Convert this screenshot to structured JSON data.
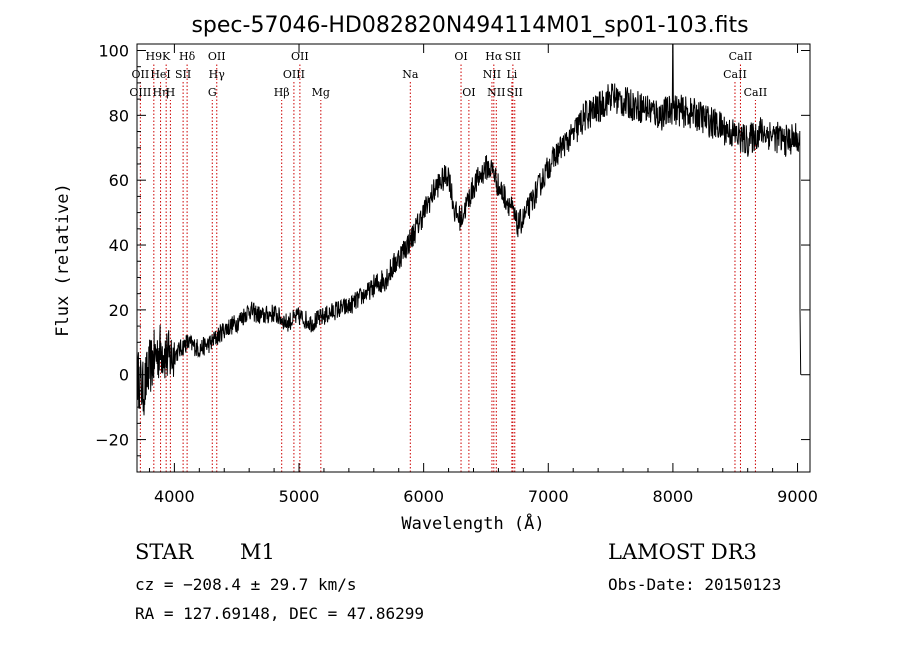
{
  "chart_data": {
    "type": "line",
    "title": "spec-57046-HD082820N494114M01_sp01-103.fits",
    "xlabel": "Wavelength (Å)",
    "ylabel": "Flux (relative)",
    "xlim": [
      3700,
      9100
    ],
    "ylim": [
      -30,
      102
    ],
    "xticks": [
      4000,
      5000,
      6000,
      7000,
      8000,
      9000
    ],
    "yticks": [
      -20,
      0,
      20,
      40,
      60,
      80,
      100
    ],
    "anchors": [
      [
        3700,
        0
      ],
      [
        3750,
        -5
      ],
      [
        3800,
        2
      ],
      [
        3850,
        6
      ],
      [
        3900,
        8
      ],
      [
        3950,
        5
      ],
      [
        4000,
        6
      ],
      [
        4100,
        10
      ],
      [
        4200,
        8
      ],
      [
        4300,
        10
      ],
      [
        4400,
        14
      ],
      [
        4500,
        16
      ],
      [
        4600,
        20
      ],
      [
        4700,
        18
      ],
      [
        4800,
        19
      ],
      [
        4900,
        16
      ],
      [
        5000,
        18
      ],
      [
        5100,
        16
      ],
      [
        5200,
        18
      ],
      [
        5300,
        20
      ],
      [
        5400,
        21
      ],
      [
        5500,
        24
      ],
      [
        5600,
        27
      ],
      [
        5700,
        30
      ],
      [
        5800,
        36
      ],
      [
        5900,
        42
      ],
      [
        6000,
        50
      ],
      [
        6100,
        58
      ],
      [
        6200,
        62
      ],
      [
        6250,
        50
      ],
      [
        6300,
        48
      ],
      [
        6400,
        58
      ],
      [
        6500,
        64
      ],
      [
        6560,
        63
      ],
      [
        6600,
        58
      ],
      [
        6700,
        52
      ],
      [
        6750,
        46
      ],
      [
        6800,
        48
      ],
      [
        6900,
        56
      ],
      [
        7000,
        64
      ],
      [
        7100,
        70
      ],
      [
        7200,
        74
      ],
      [
        7300,
        80
      ],
      [
        7400,
        82
      ],
      [
        7500,
        86
      ],
      [
        7600,
        84
      ],
      [
        7700,
        83
      ],
      [
        7800,
        82
      ],
      [
        7900,
        80
      ],
      [
        8000,
        82
      ],
      [
        8100,
        81
      ],
      [
        8200,
        80
      ],
      [
        8300,
        78
      ],
      [
        8400,
        76
      ],
      [
        8500,
        74
      ],
      [
        8600,
        72
      ],
      [
        8700,
        75
      ],
      [
        8800,
        74
      ],
      [
        8900,
        72
      ],
      [
        9000,
        73
      ],
      [
        9020,
        70
      ]
    ],
    "lines": [
      {
        "label": "H9",
        "x": 3835,
        "row": 1
      },
      {
        "label": "K",
        "x": 3934,
        "row": 1
      },
      {
        "label": "Hδ",
        "x": 4102,
        "row": 1
      },
      {
        "label": "OII",
        "x": 4340,
        "row": 1
      },
      {
        "label": "OII",
        "x": 5007,
        "row": 1
      },
      {
        "label": "OI",
        "x": 6300,
        "row": 1
      },
      {
        "label": "Hα",
        "x": 6563,
        "row": 1
      },
      {
        "label": "SII",
        "x": 6716,
        "row": 1
      },
      {
        "label": "CaII",
        "x": 8542,
        "row": 1
      },
      {
        "label": "OII",
        "x": 3727,
        "row": 2
      },
      {
        "label": "HeI",
        "x": 3889,
        "row": 2
      },
      {
        "label": "SII",
        "x": 4070,
        "row": 2
      },
      {
        "label": "Hγ",
        "x": 4340,
        "row": 2
      },
      {
        "label": "OIII",
        "x": 4959,
        "row": 2
      },
      {
        "label": "Na",
        "x": 5893,
        "row": 2
      },
      {
        "label": "NII",
        "x": 6548,
        "row": 2
      },
      {
        "label": "Li",
        "x": 6708,
        "row": 2
      },
      {
        "label": "CaII",
        "x": 8498,
        "row": 2
      },
      {
        "label": "OIII",
        "x": 3727,
        "row": 3
      },
      {
        "label": "Hη",
        "x": 3889,
        "row": 3
      },
      {
        "label": "H",
        "x": 3968,
        "row": 3
      },
      {
        "label": "G",
        "x": 4304,
        "row": 3
      },
      {
        "label": "Hβ",
        "x": 4861,
        "row": 3
      },
      {
        "label": "Mg",
        "x": 5175,
        "row": 3
      },
      {
        "label": "OI",
        "x": 6363,
        "row": 3
      },
      {
        "label": "NII",
        "x": 6583,
        "row": 3
      },
      {
        "label": "SII",
        "x": 6731,
        "row": 3
      },
      {
        "label": "CaII",
        "x": 8662,
        "row": 3
      }
    ]
  },
  "info": {
    "object_type": "STAR",
    "subclass": "M1",
    "survey": "LAMOST DR3",
    "cz": "cz = −208.4 ± 29.7 km/s",
    "obs_date": "Obs-Date: 20150123",
    "coords": "RA = 127.69148, DEC =  47.86299"
  },
  "colors": {
    "line_marker": "#cc0000",
    "spectrum": "#000000"
  }
}
